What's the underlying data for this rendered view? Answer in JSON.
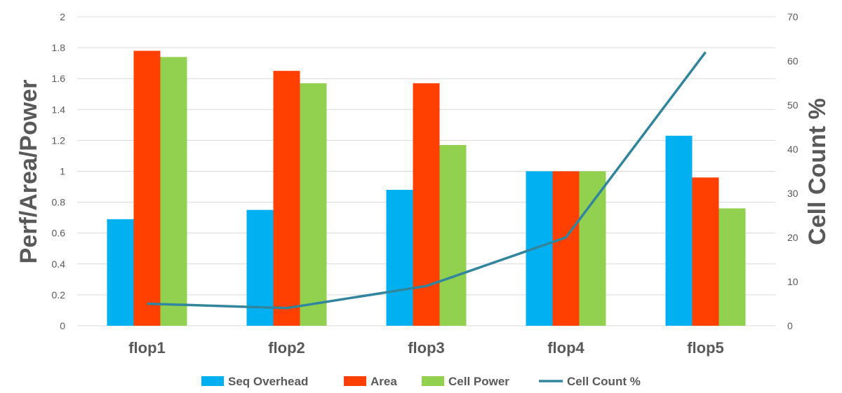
{
  "chart_data": {
    "type": "bar",
    "categories": [
      "flop1",
      "flop2",
      "flop3",
      "flop4",
      "flop5"
    ],
    "series": [
      {
        "name": "Seq Overhead",
        "kind": "bar",
        "axis": "left",
        "color": "#00b0f0",
        "values": [
          0.69,
          0.75,
          0.88,
          1.0,
          1.23
        ]
      },
      {
        "name": "Area",
        "kind": "bar",
        "axis": "left",
        "color": "#ff4000",
        "values": [
          1.78,
          1.65,
          1.57,
          1.0,
          0.96
        ]
      },
      {
        "name": "Cell Power",
        "kind": "bar",
        "axis": "left",
        "color": "#92d050",
        "values": [
          1.74,
          1.57,
          1.17,
          1.0,
          0.76
        ]
      },
      {
        "name": "Cell Count %",
        "kind": "line",
        "axis": "right",
        "color": "#31859c",
        "values": [
          5,
          4,
          9,
          20,
          62
        ]
      }
    ],
    "ylabel": "Perf/Area/Power",
    "y2label": "Cell Count %",
    "ylim": [
      0,
      2
    ],
    "y2lim": [
      0,
      70
    ],
    "yticks": [
      "0",
      "0.2",
      "0.4",
      "0.6",
      "0.8",
      "1",
      "1.2",
      "1.4",
      "1.6",
      "1.8",
      "2"
    ],
    "y2ticks": [
      "0",
      "10",
      "20",
      "30",
      "40",
      "50",
      "60",
      "70"
    ],
    "grid": true,
    "legend_position": "bottom"
  }
}
